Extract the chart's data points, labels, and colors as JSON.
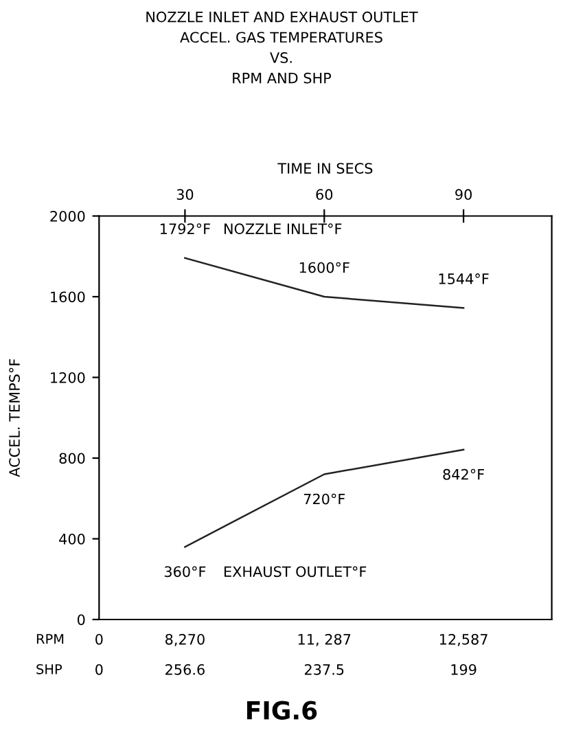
{
  "chart_data": {
    "type": "line",
    "title": "NOZZLE INLET AND EXHAUST OUTLET\nACCEL. GAS TEMPERATURES\nVS.\nRPM AND SHP",
    "xlabel": "TIME IN SECS",
    "ylabel": "ACCEL. TEMPS°F",
    "x": [
      30,
      60,
      90
    ],
    "xlim": [
      11.5,
      109
    ],
    "xticks": [
      30,
      60,
      90
    ],
    "ylim": [
      0,
      2000
    ],
    "yticks": [
      0,
      400,
      800,
      1200,
      1600,
      2000
    ],
    "series": [
      {
        "name": "NOZZLE INLET°F",
        "color": "#222222",
        "values": [
          1792,
          1600,
          1544
        ],
        "value_labels": [
          "1792°F",
          "1600°F",
          "1544°F"
        ]
      },
      {
        "name": "EXHAUST OUTLET°F",
        "color": "#222222",
        "values": [
          360,
          720,
          842
        ],
        "value_labels": [
          "360°F",
          "720°F",
          "842°F"
        ]
      }
    ],
    "grid": false,
    "legend": false,
    "annotations": [
      "RPM",
      "0",
      "8,270",
      "11, 287",
      "12,587",
      "SHP",
      "0",
      "256.6",
      "237.5",
      "199",
      "FIG.6"
    ]
  }
}
